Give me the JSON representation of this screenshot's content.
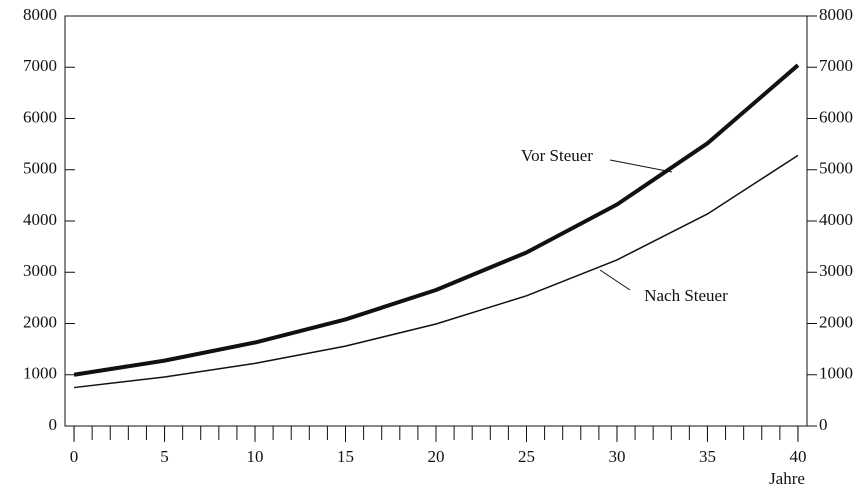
{
  "chart_data": {
    "type": "line",
    "x_label": "Jahre",
    "x": [
      0,
      5,
      10,
      15,
      20,
      25,
      30,
      35,
      40
    ],
    "series": [
      {
        "name": "Vor Steuer",
        "color": "#111111",
        "width": 4,
        "values": [
          1000,
          1276,
          1629,
          2079,
          2653,
          3386,
          4322,
          5516,
          7040
        ]
      },
      {
        "name": "Nach Steuer",
        "color": "#111111",
        "width": 1.5,
        "values": [
          750,
          957,
          1222,
          1559,
          1990,
          2540,
          3241,
          4137,
          5280
        ]
      }
    ],
    "xlim": [
      -0.5,
      40.5
    ],
    "xticks": [
      0,
      5,
      10,
      15,
      20,
      25,
      30,
      35,
      40
    ],
    "xminor": 1,
    "ylim": [
      0,
      8000
    ],
    "yticks": [
      0,
      1000,
      2000,
      3000,
      4000,
      5000,
      6000,
      7000,
      8000
    ],
    "y2lim": [
      0,
      8000
    ],
    "y2ticks": [
      0,
      1000,
      2000,
      3000,
      4000,
      5000,
      6000,
      7000,
      8000
    ],
    "grid": false
  }
}
